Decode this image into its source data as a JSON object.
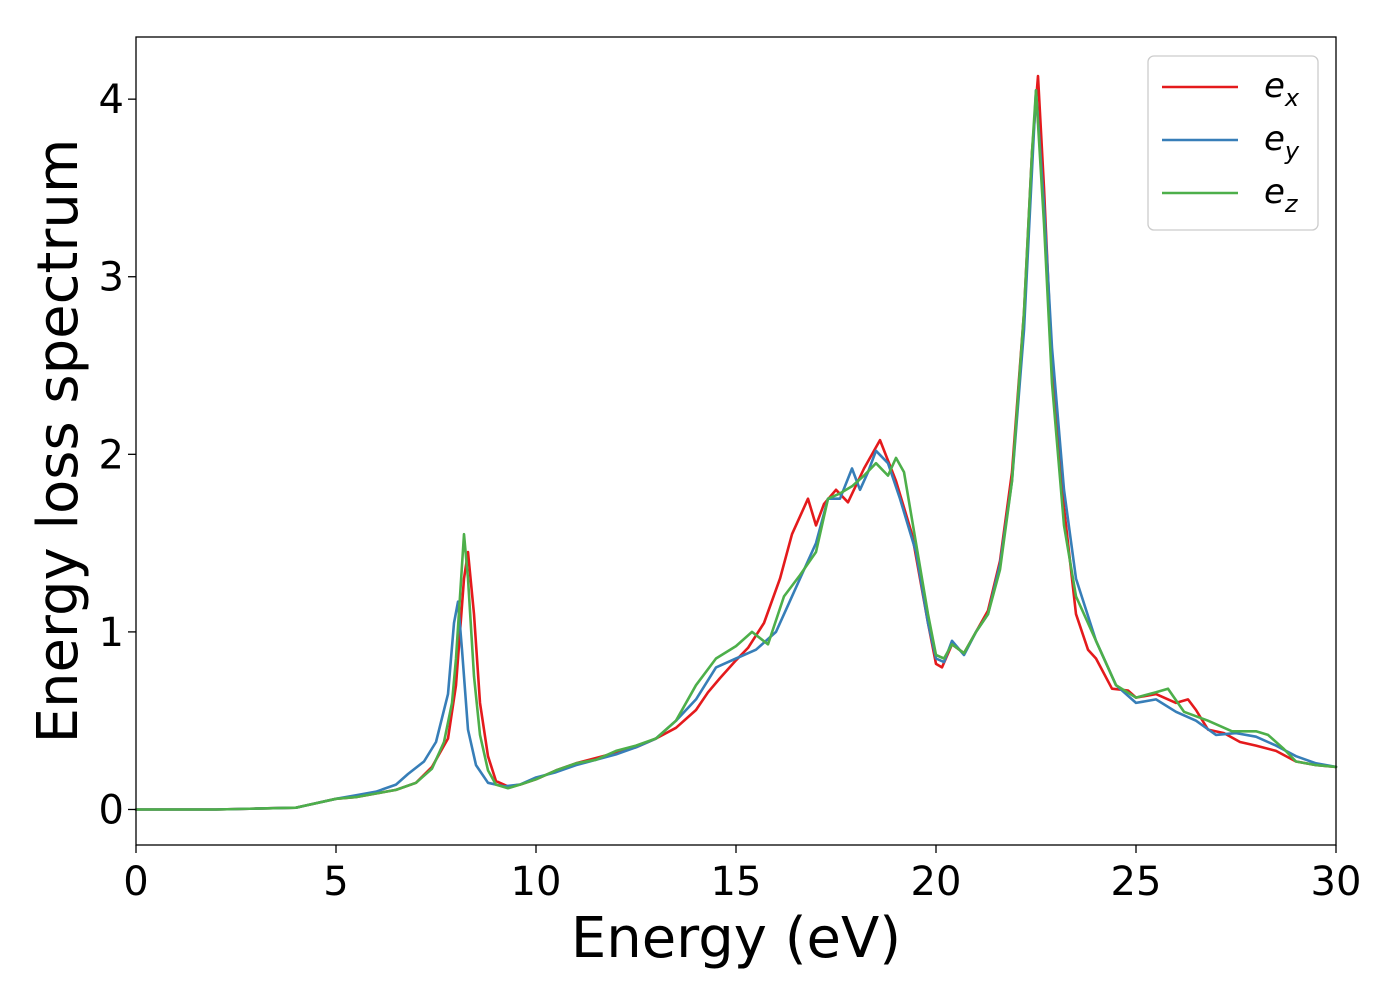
{
  "chart_data": {
    "type": "line",
    "title": "",
    "xlabel": "Energy (eV)",
    "ylabel": "Energy loss spectrum",
    "xlim": [
      0,
      30
    ],
    "ylim": [
      -0.2,
      4.35
    ],
    "xticks": [
      0,
      5,
      10,
      15,
      20,
      25,
      30
    ],
    "yticks": [
      0,
      1,
      2,
      3,
      4
    ],
    "grid": false,
    "legend_position": "top-right",
    "series": [
      {
        "name": "e_x",
        "label_base": "e",
        "label_sub": "x",
        "color": "#e41a1c",
        "x": [
          0,
          2,
          3,
          4,
          4.2,
          5,
          5.5,
          6,
          6.5,
          7,
          7.4,
          7.8,
          8.0,
          8.1,
          8.2,
          8.3,
          8.45,
          8.6,
          8.8,
          9.0,
          9.3,
          9.6,
          10,
          10.5,
          11,
          11.5,
          12,
          12.5,
          13,
          13.5,
          14,
          14.3,
          14.6,
          15,
          15.3,
          15.7,
          16.1,
          16.4,
          16.8,
          17.0,
          17.2,
          17.5,
          17.8,
          18.2,
          18.6,
          19.0,
          19.4,
          19.8,
          20.0,
          20.15,
          20.4,
          20.7,
          21.0,
          21.3,
          21.6,
          21.9,
          22.2,
          22.4,
          22.55,
          22.7,
          22.9,
          23.2,
          23.5,
          23.8,
          24.0,
          24.4,
          24.8,
          25.0,
          25.5,
          26.0,
          26.3,
          26.5,
          26.8,
          27.2,
          27.6,
          28.0,
          28.5,
          29.0,
          29.5,
          30.0
        ],
        "y": [
          0,
          0,
          0.005,
          0.01,
          0.02,
          0.06,
          0.07,
          0.09,
          0.11,
          0.15,
          0.24,
          0.4,
          0.7,
          1.0,
          1.3,
          1.45,
          1.1,
          0.6,
          0.3,
          0.16,
          0.13,
          0.14,
          0.17,
          0.22,
          0.26,
          0.29,
          0.32,
          0.35,
          0.4,
          0.46,
          0.56,
          0.66,
          0.74,
          0.84,
          0.91,
          1.05,
          1.3,
          1.55,
          1.75,
          1.6,
          1.72,
          1.8,
          1.73,
          1.92,
          2.08,
          1.85,
          1.55,
          1.05,
          0.82,
          0.8,
          0.93,
          0.88,
          1.0,
          1.12,
          1.4,
          1.9,
          2.8,
          3.7,
          4.13,
          3.5,
          2.5,
          1.7,
          1.1,
          0.9,
          0.85,
          0.68,
          0.67,
          0.63,
          0.65,
          0.6,
          0.62,
          0.56,
          0.45,
          0.43,
          0.38,
          0.36,
          0.33,
          0.27,
          0.25,
          0.24
        ]
      },
      {
        "name": "e_y",
        "label_base": "e",
        "label_sub": "y",
        "color": "#377eb8",
        "x": [
          0,
          2,
          3,
          4,
          4.2,
          5,
          5.5,
          6,
          6.5,
          6.8,
          7.2,
          7.5,
          7.8,
          7.95,
          8.05,
          8.15,
          8.3,
          8.5,
          8.8,
          9.2,
          9.6,
          10,
          10.5,
          11,
          11.5,
          12,
          12.5,
          13,
          13.5,
          14,
          14.5,
          15,
          15.5,
          16,
          16.3,
          16.6,
          17.0,
          17.3,
          17.6,
          17.9,
          18.1,
          18.3,
          18.5,
          18.8,
          19.1,
          19.5,
          19.8,
          20.0,
          20.2,
          20.4,
          20.7,
          21.0,
          21.3,
          21.6,
          21.9,
          22.2,
          22.4,
          22.5,
          22.7,
          22.9,
          23.2,
          23.5,
          24.0,
          24.5,
          25.0,
          25.5,
          26.0,
          26.5,
          27.0,
          27.5,
          28.0,
          28.5,
          29.0,
          29.5,
          30.0
        ],
        "y": [
          0,
          0,
          0.005,
          0.01,
          0.02,
          0.06,
          0.08,
          0.1,
          0.14,
          0.2,
          0.27,
          0.38,
          0.65,
          1.05,
          1.17,
          0.9,
          0.45,
          0.25,
          0.15,
          0.13,
          0.14,
          0.18,
          0.21,
          0.25,
          0.28,
          0.31,
          0.35,
          0.4,
          0.5,
          0.62,
          0.8,
          0.85,
          0.9,
          1.0,
          1.15,
          1.3,
          1.5,
          1.75,
          1.75,
          1.92,
          1.8,
          1.9,
          2.02,
          1.95,
          1.75,
          1.45,
          1.05,
          0.85,
          0.83,
          0.95,
          0.87,
          1.0,
          1.1,
          1.38,
          1.85,
          2.7,
          3.6,
          4.05,
          3.4,
          2.6,
          1.8,
          1.3,
          0.95,
          0.7,
          0.6,
          0.62,
          0.55,
          0.5,
          0.42,
          0.43,
          0.41,
          0.36,
          0.3,
          0.26,
          0.24
        ]
      },
      {
        "name": "e_z",
        "label_base": "e",
        "label_sub": "z",
        "color": "#4daf4a",
        "x": [
          0,
          2,
          3,
          4,
          4.2,
          5,
          5.5,
          6,
          6.5,
          7,
          7.4,
          7.7,
          7.9,
          8.0,
          8.1,
          8.2,
          8.3,
          8.45,
          8.6,
          8.8,
          9.0,
          9.3,
          9.6,
          10,
          10.5,
          11,
          11.5,
          12,
          12.5,
          13,
          13.5,
          14,
          14.5,
          15,
          15.4,
          15.8,
          16.2,
          16.6,
          17.0,
          17.3,
          17.6,
          17.9,
          18.2,
          18.5,
          18.8,
          19.0,
          19.2,
          19.5,
          19.8,
          20.0,
          20.2,
          20.4,
          20.7,
          21.0,
          21.3,
          21.6,
          21.9,
          22.2,
          22.4,
          22.5,
          22.7,
          22.9,
          23.2,
          23.5,
          24.0,
          24.5,
          25.0,
          25.5,
          25.8,
          26.2,
          26.8,
          27.4,
          28.0,
          28.3,
          28.7,
          29.0,
          29.5,
          30.0
        ],
        "y": [
          0,
          0,
          0.005,
          0.01,
          0.02,
          0.06,
          0.07,
          0.09,
          0.11,
          0.15,
          0.23,
          0.38,
          0.6,
          0.85,
          1.2,
          1.55,
          1.3,
          0.75,
          0.42,
          0.22,
          0.14,
          0.12,
          0.14,
          0.17,
          0.22,
          0.26,
          0.28,
          0.33,
          0.36,
          0.4,
          0.5,
          0.7,
          0.85,
          0.92,
          1.0,
          0.93,
          1.2,
          1.32,
          1.45,
          1.75,
          1.78,
          1.82,
          1.88,
          1.95,
          1.88,
          1.98,
          1.9,
          1.5,
          1.1,
          0.87,
          0.85,
          0.93,
          0.88,
          1.0,
          1.1,
          1.35,
          1.85,
          2.8,
          3.7,
          4.05,
          3.3,
          2.4,
          1.6,
          1.2,
          0.95,
          0.7,
          0.63,
          0.66,
          0.68,
          0.55,
          0.5,
          0.44,
          0.44,
          0.42,
          0.34,
          0.27,
          0.25,
          0.24
        ]
      }
    ]
  }
}
